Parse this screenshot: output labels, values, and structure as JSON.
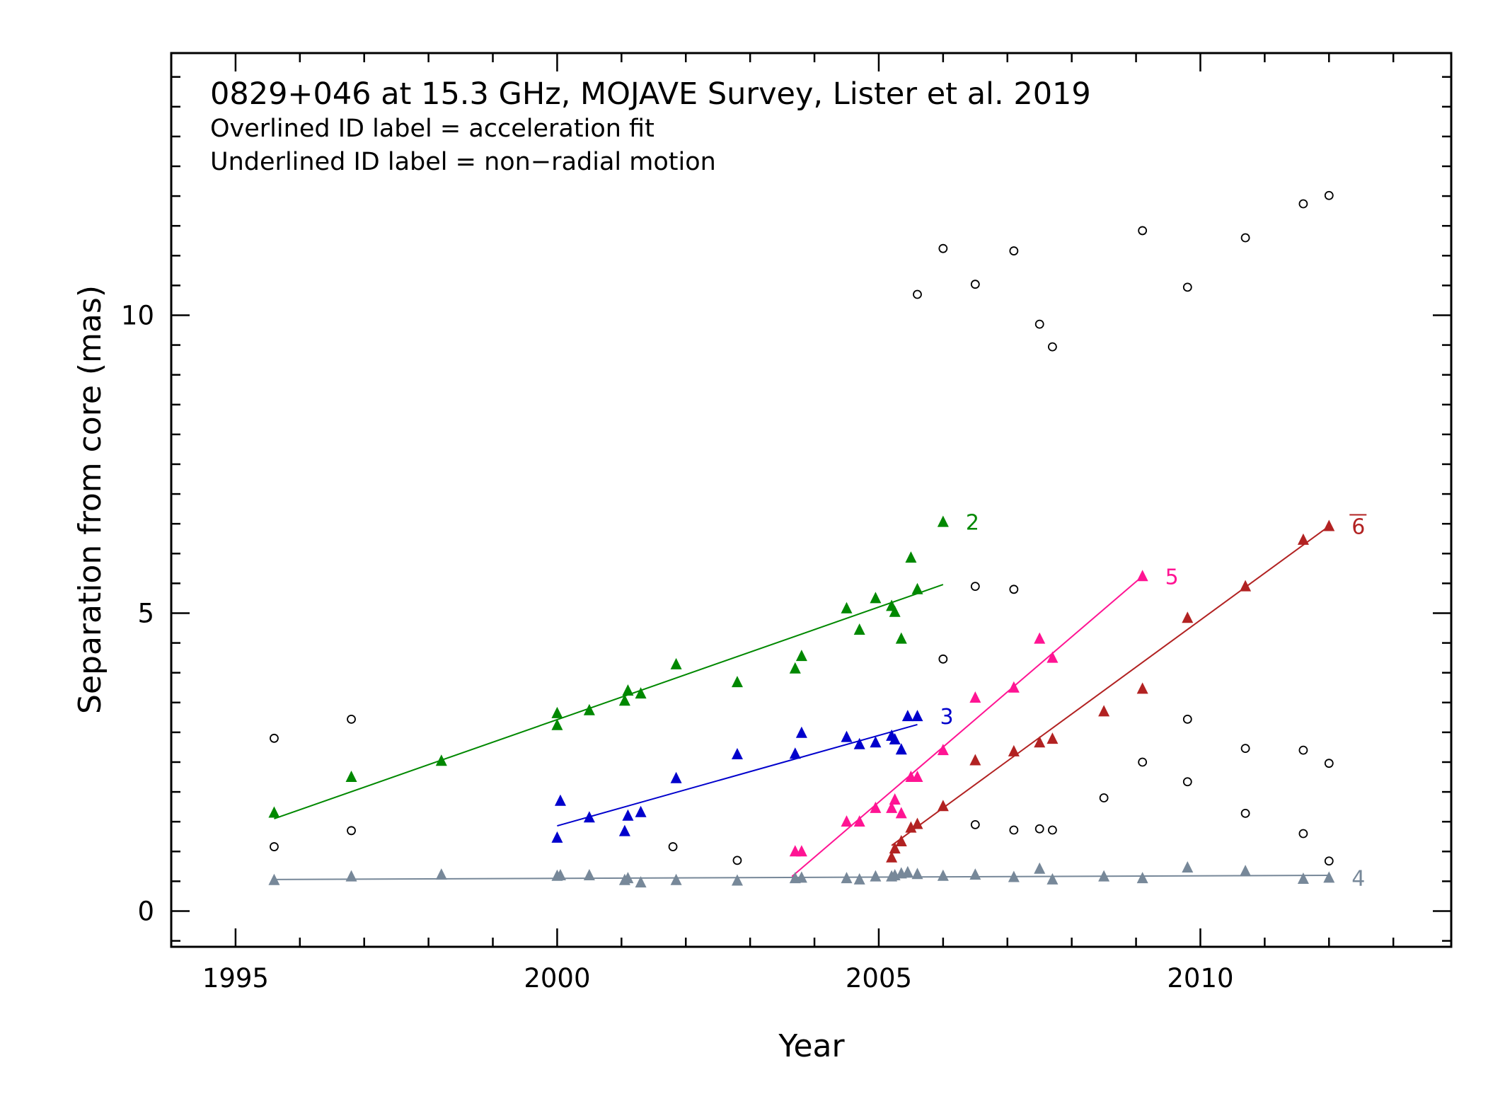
{
  "chart_data": {
    "type": "scatter",
    "title": "0829+046 at 15.3 GHz, MOJAVE Survey, Lister et al. 2019",
    "subtitle_lines": [
      "Overlined ID label = acceleration fit",
      "Underlined ID label = non−radial motion"
    ],
    "xlabel": "Year",
    "ylabel": "Separation from core (mas)",
    "xlim": [
      1994.0,
      2013.9
    ],
    "ylim": [
      -0.6,
      14.4
    ],
    "xticks": [
      1995,
      2000,
      2005,
      2010
    ],
    "xtick_labels": [
      "1995",
      "2000",
      "2005",
      "2010"
    ],
    "yticks": [
      0,
      5,
      10
    ],
    "ytick_labels": [
      "0",
      "5",
      "10"
    ],
    "grid": false,
    "unassigned": {
      "marker": "open-circle",
      "color": "#000000",
      "points": [
        [
          1995.6,
          2.9
        ],
        [
          1995.6,
          1.08
        ],
        [
          1996.8,
          3.22
        ],
        [
          1996.8,
          1.35
        ],
        [
          2001.8,
          1.08
        ],
        [
          2002.8,
          0.85
        ],
        [
          2005.6,
          10.35
        ],
        [
          2006.0,
          11.12
        ],
        [
          2006.0,
          4.23
        ],
        [
          2006.5,
          10.52
        ],
        [
          2006.5,
          5.45
        ],
        [
          2006.5,
          1.45
        ],
        [
          2007.1,
          11.08
        ],
        [
          2007.1,
          5.4
        ],
        [
          2007.1,
          1.36
        ],
        [
          2007.5,
          9.85
        ],
        [
          2007.5,
          1.38
        ],
        [
          2007.7,
          9.47
        ],
        [
          2007.7,
          1.36
        ],
        [
          2008.5,
          1.9
        ],
        [
          2009.1,
          11.42
        ],
        [
          2009.1,
          2.5
        ],
        [
          2009.8,
          10.47
        ],
        [
          2009.8,
          3.22
        ],
        [
          2009.8,
          2.17
        ],
        [
          2010.7,
          11.3
        ],
        [
          2010.7,
          2.73
        ],
        [
          2010.7,
          1.64
        ],
        [
          2011.6,
          11.87
        ],
        [
          2011.6,
          2.7
        ],
        [
          2011.6,
          1.3
        ],
        [
          2012.0,
          12.01
        ],
        [
          2012.0,
          2.48
        ],
        [
          2012.0,
          0.84
        ]
      ]
    },
    "series": [
      {
        "name": "2",
        "marker": "triangle",
        "color": "#008800",
        "label_style": "plain",
        "points": [
          [
            1995.6,
            1.65
          ],
          [
            1996.8,
            2.25
          ],
          [
            1998.2,
            2.52
          ],
          [
            2000.0,
            3.12
          ],
          [
            2000.0,
            3.32
          ],
          [
            2000.5,
            3.37
          ],
          [
            2001.05,
            3.53
          ],
          [
            2001.1,
            3.7
          ],
          [
            2001.3,
            3.65
          ],
          [
            2001.85,
            4.14
          ],
          [
            2002.8,
            3.84
          ],
          [
            2003.7,
            4.07
          ],
          [
            2003.8,
            4.28
          ],
          [
            2004.5,
            5.08
          ],
          [
            2004.7,
            4.72
          ],
          [
            2004.95,
            5.25
          ],
          [
            2005.2,
            5.12
          ],
          [
            2005.25,
            5.02
          ],
          [
            2005.35,
            4.57
          ],
          [
            2005.5,
            5.93
          ],
          [
            2005.6,
            5.4
          ],
          [
            2006.0,
            6.53
          ]
        ],
        "fit": [
          [
            1995.6,
            1.55
          ],
          [
            2006.0,
            5.48
          ]
        ]
      },
      {
        "name": "3",
        "marker": "triangle",
        "color": "#0000cc",
        "label_style": "plain",
        "points": [
          [
            2000.0,
            1.23
          ],
          [
            2000.05,
            1.85
          ],
          [
            2000.5,
            1.57
          ],
          [
            2001.05,
            1.34
          ],
          [
            2001.1,
            1.6
          ],
          [
            2001.3,
            1.66
          ],
          [
            2001.85,
            2.23
          ],
          [
            2002.8,
            2.63
          ],
          [
            2003.7,
            2.64
          ],
          [
            2003.8,
            2.99
          ],
          [
            2004.5,
            2.92
          ],
          [
            2004.7,
            2.8
          ],
          [
            2004.95,
            2.83
          ],
          [
            2005.2,
            2.94
          ],
          [
            2005.25,
            2.88
          ],
          [
            2005.35,
            2.71
          ],
          [
            2005.45,
            3.27
          ],
          [
            2005.6,
            3.27
          ]
        ],
        "fit": [
          [
            2000.0,
            1.43
          ],
          [
            2005.6,
            3.13
          ]
        ]
      },
      {
        "name": "4",
        "marker": "triangle",
        "color": "#778899",
        "label_style": "plain",
        "points": [
          [
            1995.6,
            0.52
          ],
          [
            1996.8,
            0.58
          ],
          [
            1998.2,
            0.61
          ],
          [
            2000.0,
            0.59
          ],
          [
            2000.05,
            0.6
          ],
          [
            2000.5,
            0.6
          ],
          [
            2001.05,
            0.52
          ],
          [
            2001.1,
            0.55
          ],
          [
            2001.3,
            0.48
          ],
          [
            2001.85,
            0.52
          ],
          [
            2002.8,
            0.51
          ],
          [
            2003.7,
            0.55
          ],
          [
            2003.8,
            0.56
          ],
          [
            2004.5,
            0.55
          ],
          [
            2004.7,
            0.53
          ],
          [
            2004.95,
            0.58
          ],
          [
            2005.2,
            0.58
          ],
          [
            2005.25,
            0.6
          ],
          [
            2005.35,
            0.63
          ],
          [
            2005.45,
            0.65
          ],
          [
            2005.6,
            0.62
          ],
          [
            2006.0,
            0.59
          ],
          [
            2006.5,
            0.61
          ],
          [
            2007.1,
            0.57
          ],
          [
            2007.5,
            0.71
          ],
          [
            2007.7,
            0.53
          ],
          [
            2008.5,
            0.58
          ],
          [
            2009.1,
            0.55
          ],
          [
            2009.8,
            0.73
          ],
          [
            2010.7,
            0.67
          ],
          [
            2011.6,
            0.54
          ],
          [
            2012.0,
            0.56
          ]
        ],
        "fit": [
          [
            1995.6,
            0.53
          ],
          [
            2012.0,
            0.6
          ]
        ]
      },
      {
        "name": "5",
        "marker": "triangle",
        "color": "#ff1493",
        "label_style": "plain",
        "points": [
          [
            2003.7,
            1.0
          ],
          [
            2003.8,
            1.0
          ],
          [
            2004.5,
            1.5
          ],
          [
            2004.7,
            1.5
          ],
          [
            2004.95,
            1.73
          ],
          [
            2005.2,
            1.73
          ],
          [
            2005.25,
            1.87
          ],
          [
            2005.35,
            1.64
          ],
          [
            2005.5,
            2.25
          ],
          [
            2005.6,
            2.25
          ],
          [
            2006.0,
            2.7
          ],
          [
            2006.5,
            3.58
          ],
          [
            2007.1,
            3.75
          ],
          [
            2007.5,
            4.57
          ],
          [
            2007.7,
            4.25
          ],
          [
            2009.1,
            5.62
          ]
        ],
        "fit": [
          [
            2003.65,
            0.58
          ],
          [
            2009.1,
            5.62
          ]
        ]
      },
      {
        "name": "6",
        "marker": "triangle",
        "color": "#b22222",
        "label_style": "overlined",
        "points": [
          [
            2005.2,
            0.9
          ],
          [
            2005.25,
            1.05
          ],
          [
            2005.35,
            1.17
          ],
          [
            2005.5,
            1.4
          ],
          [
            2005.6,
            1.46
          ],
          [
            2006.0,
            1.76
          ],
          [
            2006.5,
            2.53
          ],
          [
            2007.1,
            2.68
          ],
          [
            2007.5,
            2.83
          ],
          [
            2007.7,
            2.89
          ],
          [
            2008.5,
            3.35
          ],
          [
            2009.1,
            3.73
          ],
          [
            2009.8,
            4.92
          ],
          [
            2010.7,
            5.45
          ],
          [
            2011.6,
            6.23
          ],
          [
            2012.0,
            6.46
          ]
        ],
        "fit": [
          [
            2005.2,
            1.1
          ],
          [
            2012.0,
            6.46
          ]
        ]
      }
    ]
  }
}
